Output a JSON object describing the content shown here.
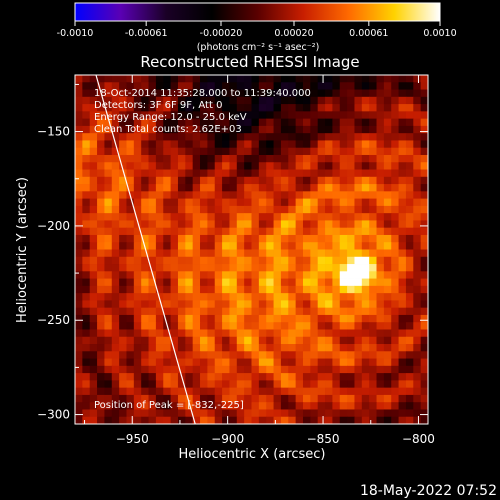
{
  "colorbar": {
    "ticks": [
      "-0.0010",
      "-0.00061",
      "-0.00020",
      "0.00020",
      "0.00061",
      "0.0010"
    ],
    "tick_values": [
      -0.001,
      -0.00061,
      -0.0002,
      0.0002,
      0.00061,
      0.001
    ],
    "units": "(photons cm⁻² s⁻¹ asec⁻²)",
    "range": [
      -0.001,
      0.001
    ],
    "colors": [
      "#0000ff",
      "#5a00b4",
      "#1a0026",
      "#000000",
      "#5a0000",
      "#c81e00",
      "#ff6a00",
      "#ffd200",
      "#ffffff"
    ]
  },
  "chart_data": {
    "type": "heatmap",
    "title": "Reconstructed RHESSI Image",
    "xlabel": "Heliocentric X (arcsec)",
    "ylabel": "Heliocentric Y (arcsec)",
    "xlim": [
      -980,
      -795
    ],
    "ylim": [
      -305,
      -120
    ],
    "xticks": [
      -950,
      -900,
      -850,
      -800
    ],
    "yticks": [
      -300,
      -250,
      -200,
      -150
    ],
    "xtick_labels": [
      "−950",
      "−900",
      "−850",
      "−800"
    ],
    "ytick_labels": [
      "−300",
      "−250",
      "−200",
      "−150"
    ],
    "annotations": [
      "18-Oct-2014 11:35:28.000 to 11:39:40.000",
      "Detectors: 3F 6F 9F, Att 0",
      "Energy Range: 12.0 - 25.0 keV",
      "Clean   Total counts: 2.62E+03"
    ],
    "peak_label": "Position of Peak = [-832,-225]",
    "peak": [
      -832,
      -225
    ],
    "limb_line": [
      [
        -969,
        -120
      ],
      [
        -917,
        -305
      ]
    ],
    "grid_shape": [
      48,
      48
    ]
  },
  "footer": {
    "timestamp": "18-May-2022 07:52"
  }
}
